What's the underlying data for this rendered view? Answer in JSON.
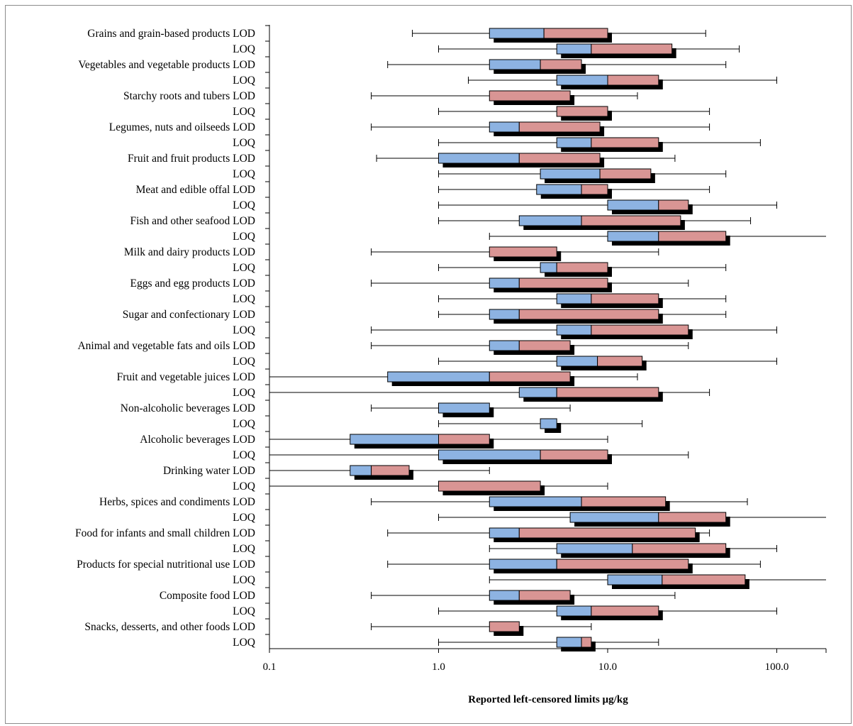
{
  "chart_data": {
    "type": "boxplot",
    "xlabel": "Reported left-censored limits µg/kg",
    "xscale": "log",
    "xlim": [
      0.1,
      200
    ],
    "xticks": [
      {
        "value": 0.1,
        "label": "0.1"
      },
      {
        "value": 1,
        "label": "1.0"
      },
      {
        "value": 10,
        "label": "10.0"
      },
      {
        "value": 100,
        "label": "100.0"
      }
    ],
    "colors": {
      "lower_box": "#8db3e2",
      "upper_box": "#d99594",
      "shadow": "#000000",
      "whisker": "#000000"
    },
    "rows": [
      {
        "label": "Grains and grain-based products LOD",
        "min": 0.7,
        "q1": 2.0,
        "median": 4.2,
        "q3": 10.0,
        "max": 38.0
      },
      {
        "label": "LOQ",
        "min": 1.0,
        "q1": 5.0,
        "median": 8.0,
        "q3": 24.0,
        "max": 60.0
      },
      {
        "label": "Vegetables and vegetable products LOD",
        "min": 0.5,
        "q1": 2.0,
        "median": 4.0,
        "q3": 7.0,
        "max": 50.0
      },
      {
        "label": "LOQ",
        "min": 1.5,
        "q1": 5.0,
        "median": 10.0,
        "q3": 20.0,
        "max": 100.0
      },
      {
        "label": "Starchy roots and tubers LOD",
        "min": 0.4,
        "q1": 2.0,
        "median": 2.0,
        "q3": 6.0,
        "max": 15.0
      },
      {
        "label": "LOQ",
        "min": 1.0,
        "q1": 5.0,
        "median": 5.0,
        "q3": 10.0,
        "max": 40.0
      },
      {
        "label": "Legumes, nuts and oilseeds LOD",
        "min": 0.4,
        "q1": 2.0,
        "median": 3.0,
        "q3": 9.0,
        "max": 40.0
      },
      {
        "label": "LOQ",
        "min": 1.0,
        "q1": 5.0,
        "median": 8.0,
        "q3": 20.0,
        "max": 80.0
      },
      {
        "label": "Fruit and fruit products LOD",
        "min": 0.43,
        "q1": 1.0,
        "median": 3.0,
        "q3": 9.0,
        "max": 25.0
      },
      {
        "label": "LOQ",
        "min": 1.0,
        "q1": 4.0,
        "median": 9.0,
        "q3": 18.0,
        "max": 50.0
      },
      {
        "label": "Meat and edible offal LOD",
        "min": 1.0,
        "q1": 3.8,
        "median": 7.0,
        "q3": 10.0,
        "max": 40.0
      },
      {
        "label": "LOQ",
        "min": 1.0,
        "q1": 10.0,
        "median": 20.0,
        "q3": 30.0,
        "max": 100.0
      },
      {
        "label": "Fish and other seafood LOD",
        "min": 1.0,
        "q1": 3.0,
        "median": 7.0,
        "q3": 27.0,
        "max": 70.0
      },
      {
        "label": "LOQ",
        "min": 2.0,
        "q1": 10.0,
        "median": 20.0,
        "q3": 50.0,
        "max": 200.0
      },
      {
        "label": "Milk and dairy products LOD",
        "min": 0.4,
        "q1": 2.0,
        "median": 2.0,
        "q3": 5.0,
        "max": 20.0
      },
      {
        "label": "LOQ",
        "min": 1.0,
        "q1": 4.0,
        "median": 5.0,
        "q3": 10.0,
        "max": 50.0
      },
      {
        "label": "Eggs and egg products LOD",
        "min": 0.4,
        "q1": 2.0,
        "median": 3.0,
        "q3": 10.0,
        "max": 30.0
      },
      {
        "label": "LOQ",
        "min": 1.0,
        "q1": 5.0,
        "median": 8.0,
        "q3": 20.0,
        "max": 50.0
      },
      {
        "label": "Sugar and confectionary LOD",
        "min": 1.0,
        "q1": 2.0,
        "median": 3.0,
        "q3": 20.0,
        "max": 50.0
      },
      {
        "label": "LOQ",
        "min": 0.4,
        "q1": 5.0,
        "median": 8.0,
        "q3": 30.0,
        "max": 100.0
      },
      {
        "label": "Animal and vegetable fats and oils LOD",
        "min": 0.4,
        "q1": 2.0,
        "median": 3.0,
        "q3": 6.0,
        "max": 30.0
      },
      {
        "label": "LOQ",
        "min": 1.0,
        "q1": 5.0,
        "median": 8.7,
        "q3": 16.0,
        "max": 100.0
      },
      {
        "label": "Fruit and vegetable juices LOD",
        "min": 0.1,
        "q1": 0.5,
        "median": 2.0,
        "q3": 6.0,
        "max": 15.0
      },
      {
        "label": "LOQ",
        "min": 0.1,
        "q1": 3.0,
        "median": 5.0,
        "q3": 20.0,
        "max": 40.0
      },
      {
        "label": "Non-alcoholic beverages LOD",
        "min": 0.4,
        "q1": 1.0,
        "median": 2.0,
        "q3": 2.0,
        "max": 6.0
      },
      {
        "label": "LOQ",
        "min": 1.0,
        "q1": 4.0,
        "median": 5.0,
        "q3": 5.0,
        "max": 16.0
      },
      {
        "label": "Alcoholic beverages LOD",
        "min": 0.1,
        "q1": 0.3,
        "median": 1.0,
        "q3": 2.0,
        "max": 10.0
      },
      {
        "label": "LOQ",
        "min": 0.1,
        "q1": 1.0,
        "median": 4.0,
        "q3": 10.0,
        "max": 30.0
      },
      {
        "label": "Drinking water LOD",
        "min": 0.1,
        "q1": 0.3,
        "median": 0.4,
        "q3": 0.67,
        "max": 2.0
      },
      {
        "label": "LOQ",
        "min": 0.1,
        "q1": 1.0,
        "median": 1.0,
        "q3": 4.0,
        "max": 10.0
      },
      {
        "label": "Herbs, spices and condiments LOD",
        "min": 0.4,
        "q1": 2.0,
        "median": 7.0,
        "q3": 22.0,
        "max": 67.0
      },
      {
        "label": "LOQ",
        "min": 1.0,
        "q1": 6.0,
        "median": 20.0,
        "q3": 50.0,
        "max": 200.0
      },
      {
        "label": "Food for infants and small children LOD",
        "min": 0.5,
        "q1": 2.0,
        "median": 3.0,
        "q3": 33.0,
        "max": 40.0
      },
      {
        "label": "LOQ",
        "min": 2.0,
        "q1": 5.0,
        "median": 14.0,
        "q3": 50.0,
        "max": 100.0
      },
      {
        "label": "Products for special nutritional use LOD",
        "min": 0.5,
        "q1": 2.0,
        "median": 5.0,
        "q3": 30.0,
        "max": 80.0
      },
      {
        "label": "LOQ",
        "min": 2.0,
        "q1": 10.0,
        "median": 21.0,
        "q3": 65.0,
        "max": 200.0
      },
      {
        "label": "Composite food LOD",
        "min": 0.4,
        "q1": 2.0,
        "median": 3.0,
        "q3": 6.0,
        "max": 25.0
      },
      {
        "label": "LOQ",
        "min": 1.0,
        "q1": 5.0,
        "median": 8.0,
        "q3": 20.0,
        "max": 100.0
      },
      {
        "label": "Snacks, desserts, and other foods LOD",
        "min": 0.4,
        "q1": 2.0,
        "median": 2.0,
        "q3": 3.0,
        "max": 8.0
      },
      {
        "label": "LOQ",
        "min": 1.0,
        "q1": 5.0,
        "median": 7.0,
        "q3": 8.0,
        "max": 20.0
      }
    ]
  }
}
